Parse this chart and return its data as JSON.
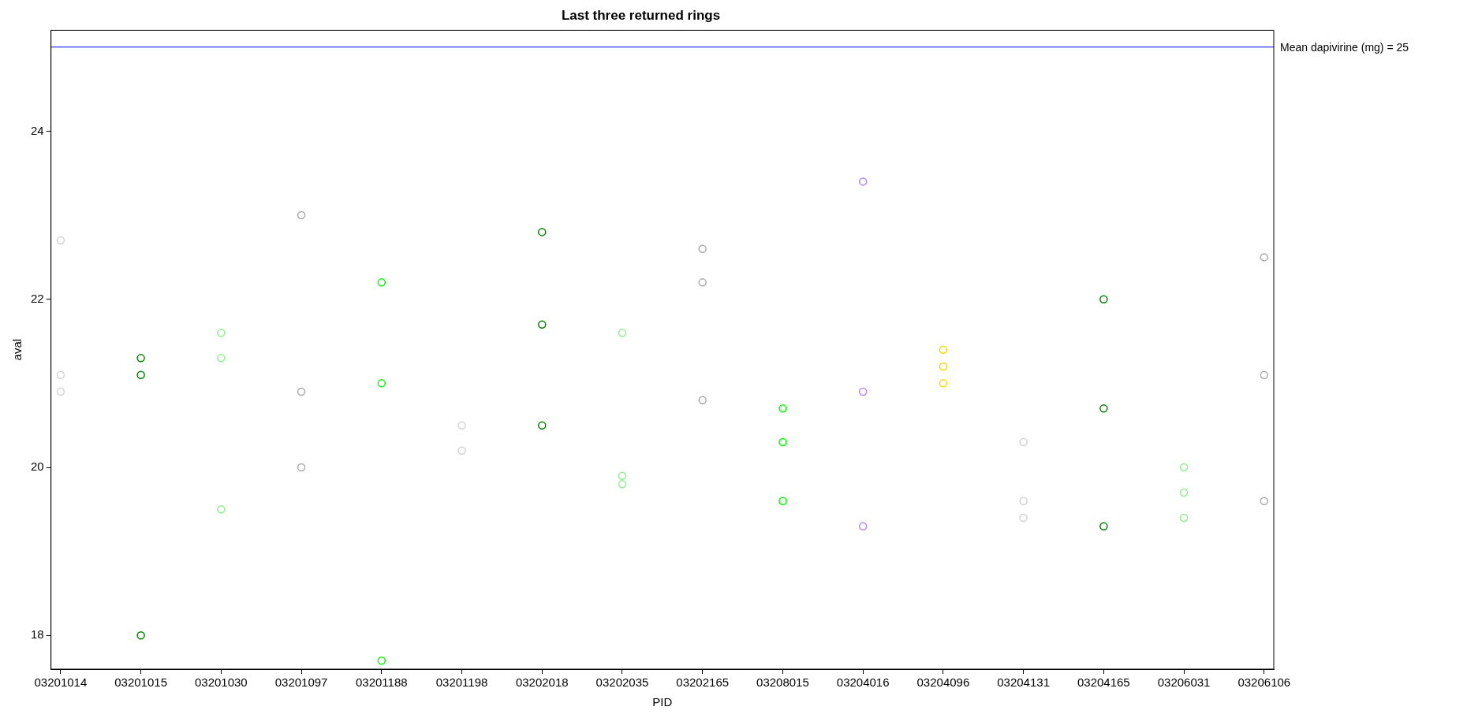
{
  "chart_data": {
    "type": "scatter",
    "title": "Last three returned rings",
    "xlabel": "PID",
    "ylabel": "aval",
    "categories": [
      "03201014",
      "03201015",
      "03201030",
      "03201097",
      "03201188",
      "03201198",
      "03202018",
      "03202035",
      "03202165",
      "03208015",
      "03204016",
      "03204096",
      "03204131",
      "03204165",
      "03206031",
      "03206106"
    ],
    "series": [
      {
        "color": "#d3d3d3",
        "x": [
          "03201014",
          "03201014",
          "03201014",
          "03201198",
          "03201198",
          "03204131",
          "03204131",
          "03204131"
        ],
        "values": [
          22.7,
          21.1,
          20.9,
          20.5,
          20.2,
          20.3,
          19.6,
          19.4
        ]
      },
      {
        "color": "#008000",
        "x": [
          "03201015",
          "03201015",
          "03201015",
          "03202018",
          "03202018",
          "03202018",
          "03204165",
          "03204165",
          "03204165"
        ],
        "values": [
          21.3,
          21.1,
          18.0,
          22.8,
          21.7,
          20.5,
          22.0,
          20.7,
          19.3
        ]
      },
      {
        "color": "#90ee90",
        "x": [
          "03201030",
          "03201030",
          "03201030",
          "03202035",
          "03202035",
          "03202035",
          "03206031",
          "03206031",
          "03206031"
        ],
        "values": [
          21.6,
          21.3,
          19.5,
          21.6,
          19.9,
          19.8,
          20.0,
          19.7,
          19.4
        ]
      },
      {
        "color": "#a9a9a9",
        "x": [
          "03201097",
          "03201097",
          "03201097",
          "03202165",
          "03202165",
          "03202165",
          "03206106",
          "03206106",
          "03206106"
        ],
        "values": [
          23.0,
          20.9,
          20.0,
          22.6,
          22.2,
          20.8,
          22.5,
          21.1,
          19.6
        ]
      },
      {
        "color": "#00ff00",
        "x": [
          "03201188",
          "03201188",
          "03201188",
          "03208015",
          "03208015",
          "03208015"
        ],
        "values": [
          22.2,
          21.0,
          17.7,
          20.7,
          20.3,
          19.6
        ]
      },
      {
        "color": "#b388ff",
        "x": [
          "03204016",
          "03204016",
          "03204016"
        ],
        "values": [
          23.4,
          20.9,
          19.3
        ]
      },
      {
        "color": "#ffd700",
        "x": [
          "03204096",
          "03204096",
          "03204096"
        ],
        "values": [
          21.4,
          21.2,
          21.0
        ]
      }
    ],
    "ylim": [
      17.6,
      25.2
    ],
    "yticks": [
      18,
      20,
      22,
      24
    ],
    "ref_lines": [
      {
        "axis": "y",
        "value": 25,
        "label": "Mean dapivirine (mg) = 25",
        "color": "#0000ff"
      }
    ],
    "marker": "circle",
    "grid": false,
    "legend": false
  }
}
